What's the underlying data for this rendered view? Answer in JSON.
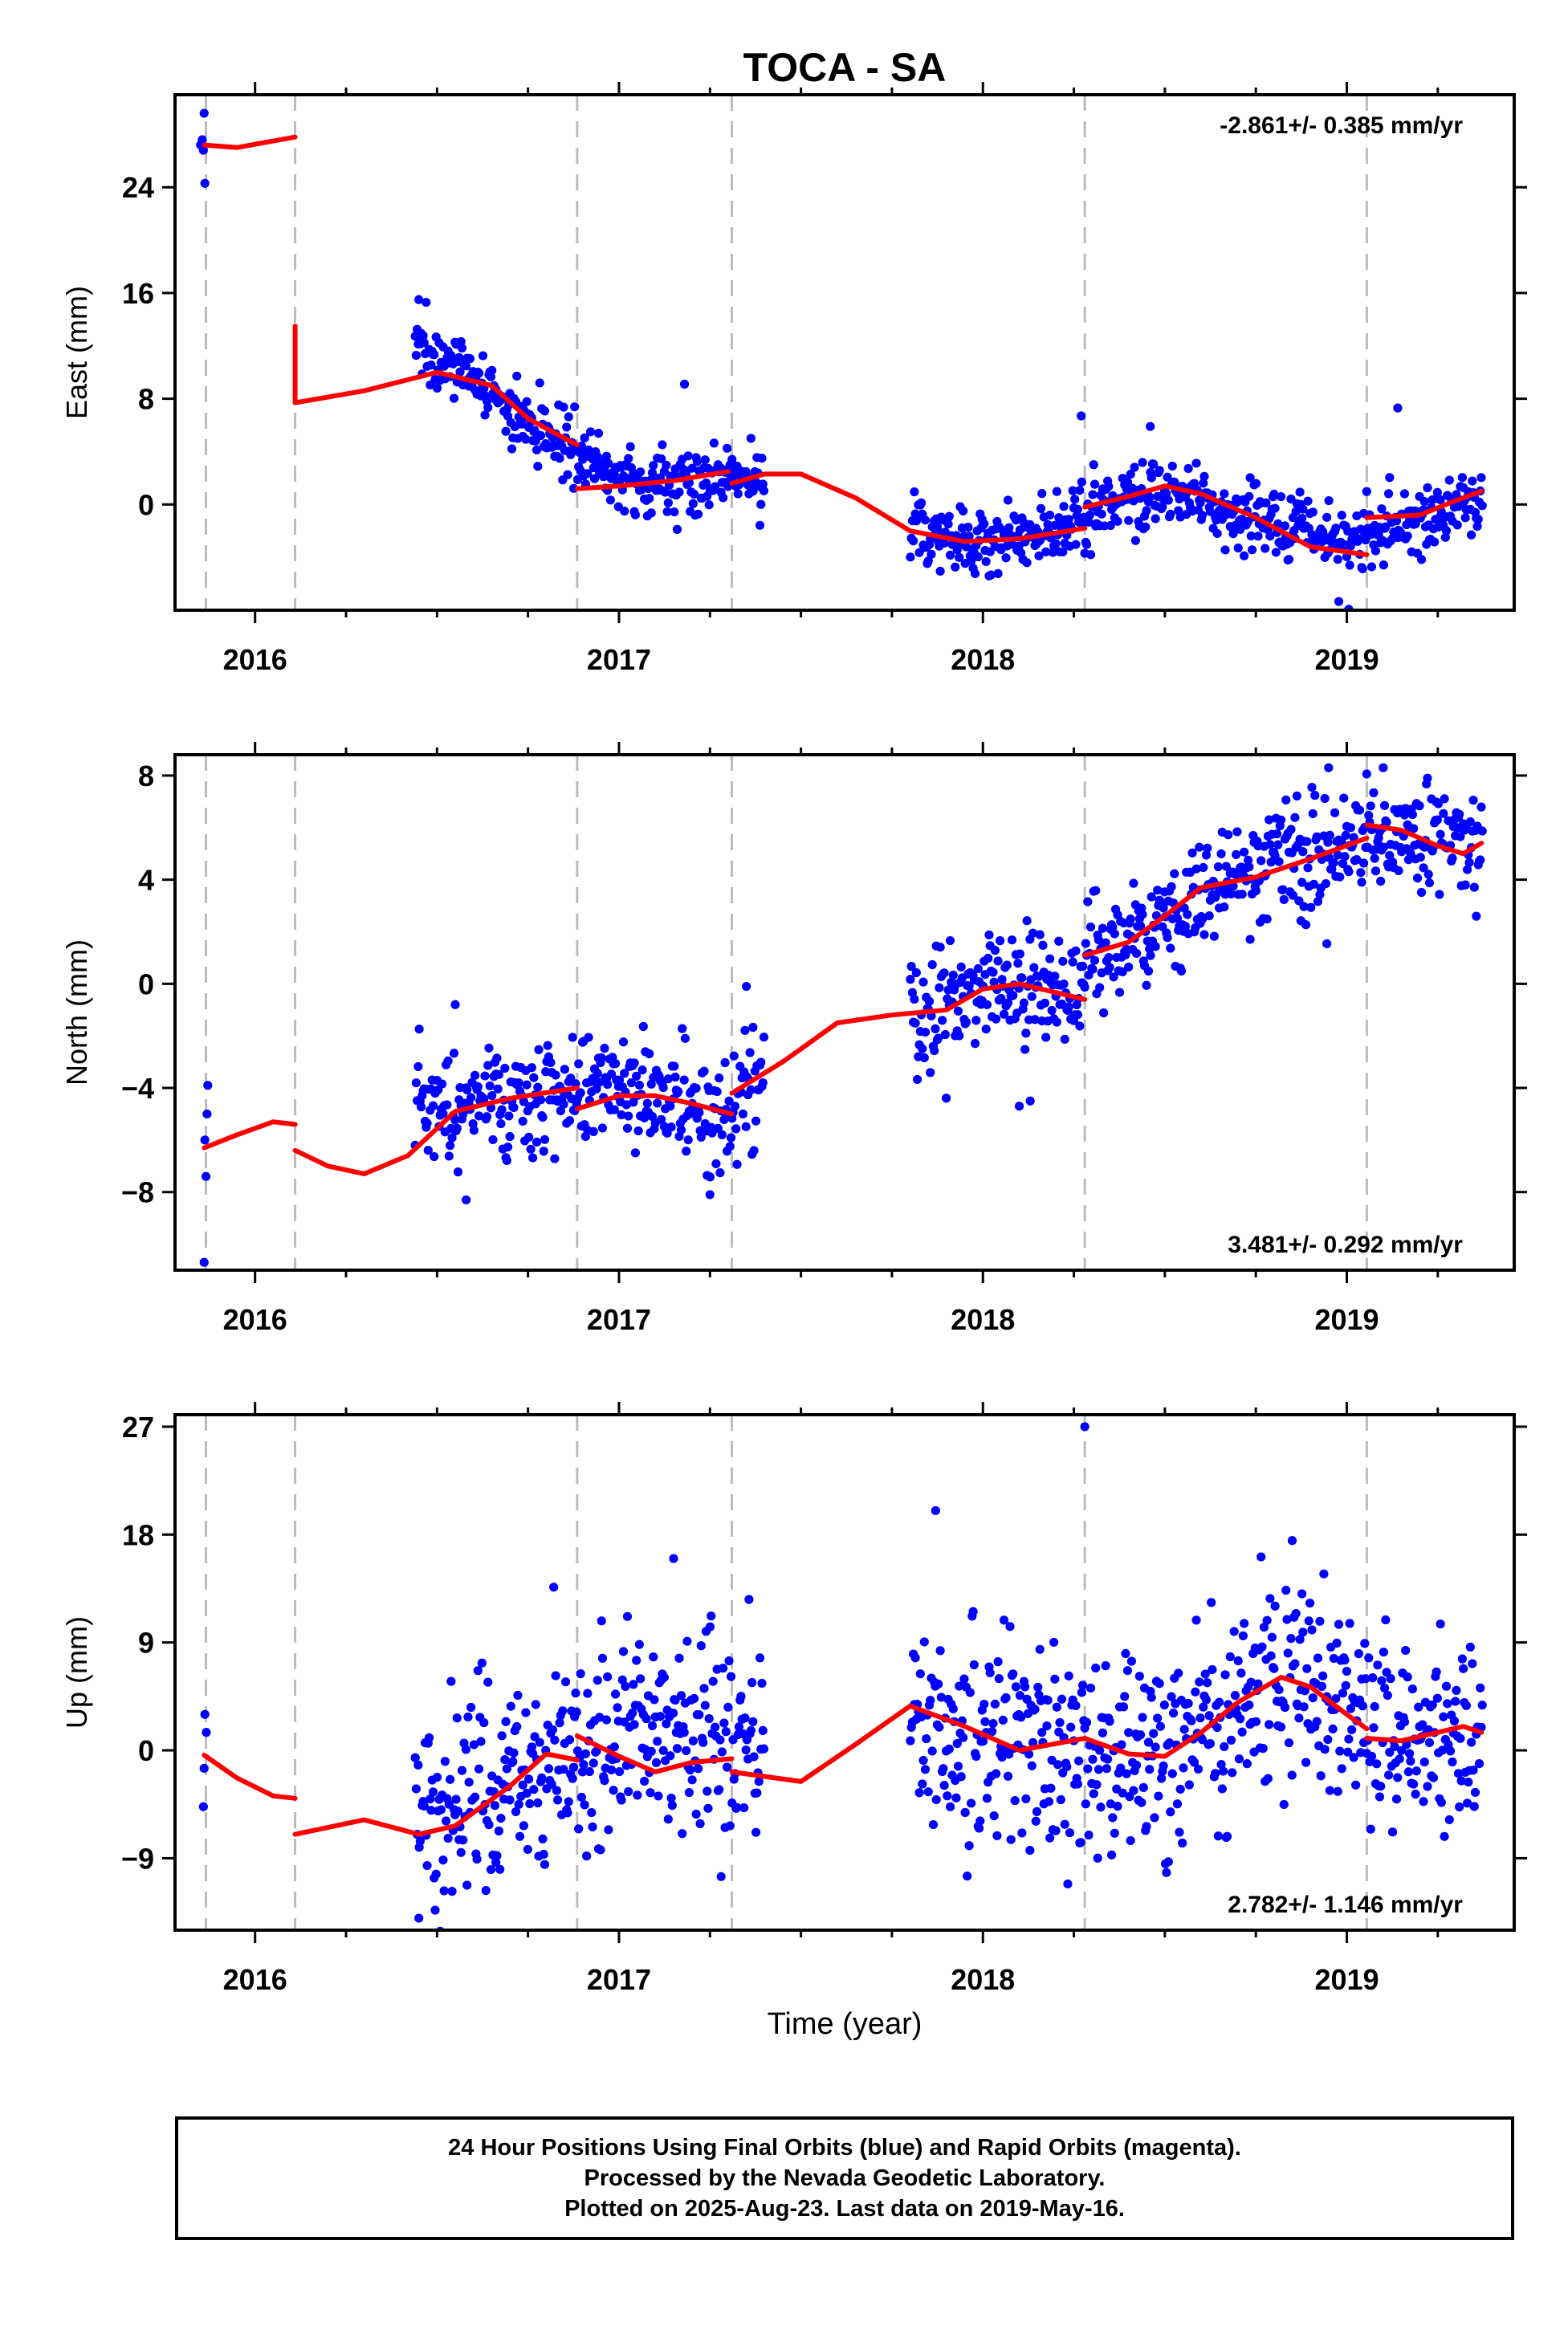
{
  "chart_data": {
    "type": "scatter",
    "title": "TOCA - SA",
    "xlabel": "Time (year)",
    "xlim": [
      2015.78,
      2019.46
    ],
    "x_ticks": [
      2016,
      2017,
      2018,
      2019
    ],
    "x_tick_labels": [
      "2016",
      "2017",
      "2018",
      "2019"
    ],
    "event_lines_x": [
      2015.865,
      2016.11,
      2016.885,
      2017.31,
      2018.28,
      2019.055
    ],
    "colors": {
      "final_orbits": "#0000ff",
      "model": "#ff0000",
      "event_line": "#bbbbbb"
    },
    "panels": [
      {
        "ylabel": "East (mm)",
        "ylim": [
          -8,
          31
        ],
        "y_ticks": [
          0,
          8,
          16,
          24
        ],
        "y_tick_labels": [
          "0",
          "8",
          "16",
          "24"
        ],
        "rate_label": "-2.861+/- 0.385 mm/yr",
        "rate_position": "top-right",
        "anchors": [
          [
            2016.45,
            12.0
          ],
          [
            2016.6,
            9.5
          ],
          [
            2016.75,
            6.0
          ],
          [
            2016.88,
            3.5
          ],
          [
            2017.05,
            1.5
          ],
          [
            2017.3,
            2.0
          ],
          [
            2017.4,
            2.0
          ],
          [
            2017.8,
            -2.0
          ],
          [
            2018.0,
            -3.0
          ],
          [
            2018.25,
            -1.5
          ],
          [
            2018.5,
            1.0
          ],
          [
            2018.8,
            -1.5
          ],
          [
            2019.0,
            -3.0
          ],
          [
            2019.2,
            -1.0
          ],
          [
            2019.37,
            0.5
          ]
        ],
        "noise": 1.3,
        "extra_points": [
          [
            2015.86,
            29.6
          ],
          [
            2015.855,
            27.6
          ],
          [
            2015.858,
            26.8
          ],
          [
            2015.862,
            24.3
          ],
          [
            2015.85,
            27.2
          ],
          [
            2016.45,
            15.5
          ],
          [
            2017.18,
            9.1
          ],
          [
            2018.27,
            6.7
          ],
          [
            2018.46,
            5.9
          ],
          [
            2019.14,
            7.3
          ]
        ],
        "model_segments": [
          [
            [
              2015.86,
              27.2
            ],
            [
              2015.95,
              27.0
            ],
            [
              2016.05,
              27.5
            ],
            [
              2016.11,
              27.8
            ]
          ],
          [
            [
              2016.11,
              13.5
            ],
            [
              2016.11,
              7.7
            ],
            [
              2016.3,
              8.6
            ],
            [
              2016.5,
              10.0
            ],
            [
              2016.65,
              9.0
            ],
            [
              2016.75,
              6.5
            ],
            [
              2016.885,
              4.5
            ]
          ],
          [
            [
              2016.885,
              1.2
            ],
            [
              2017.0,
              1.4
            ],
            [
              2017.15,
              1.8
            ],
            [
              2017.3,
              2.5
            ]
          ],
          [
            [
              2017.31,
              1.6
            ],
            [
              2017.4,
              2.3
            ],
            [
              2017.5,
              2.3
            ],
            [
              2017.65,
              0.5
            ],
            [
              2017.8,
              -2.0
            ],
            [
              2017.95,
              -2.8
            ],
            [
              2018.1,
              -2.6
            ],
            [
              2018.28,
              -1.8
            ]
          ],
          [
            [
              2018.28,
              -0.2
            ],
            [
              2018.4,
              0.6
            ],
            [
              2018.5,
              1.4
            ],
            [
              2018.6,
              0.8
            ],
            [
              2018.75,
              -1.0
            ],
            [
              2018.9,
              -3.2
            ],
            [
              2019.055,
              -3.8
            ]
          ],
          [
            [
              2019.055,
              -1.0
            ],
            [
              2019.2,
              -0.8
            ],
            [
              2019.3,
              0.3
            ],
            [
              2019.37,
              1.0
            ]
          ]
        ]
      },
      {
        "ylabel": "North (mm)",
        "ylim": [
          -11,
          8.8
        ],
        "y_ticks": [
          -8,
          -4,
          0,
          4,
          8
        ],
        "y_tick_labels": [
          "−8",
          "−4",
          "0",
          "4",
          "8"
        ],
        "rate_label": "3.481+/- 0.292 mm/yr",
        "rate_position": "bottom-right",
        "anchors": [
          [
            2016.45,
            -5.0
          ],
          [
            2016.6,
            -4.6
          ],
          [
            2016.8,
            -4.5
          ],
          [
            2016.9,
            -4.0
          ],
          [
            2017.1,
            -4.0
          ],
          [
            2017.25,
            -4.8
          ],
          [
            2017.4,
            -4.0
          ],
          [
            2017.8,
            -1.0
          ],
          [
            2018.0,
            0.0
          ],
          [
            2018.25,
            -0.5
          ],
          [
            2018.3,
            1.0
          ],
          [
            2018.5,
            2.5
          ],
          [
            2018.7,
            4.2
          ],
          [
            2018.9,
            5.0
          ],
          [
            2019.05,
            5.8
          ],
          [
            2019.2,
            5.6
          ],
          [
            2019.37,
            5.4
          ]
        ],
        "noise": 1.1,
        "extra_points": [
          [
            2015.86,
            -10.7
          ],
          [
            2015.865,
            -7.4
          ],
          [
            2015.862,
            -6.0
          ],
          [
            2015.868,
            -5.0
          ],
          [
            2015.87,
            -3.9
          ],
          [
            2016.55,
            -0.8
          ],
          [
            2016.58,
            -8.3
          ],
          [
            2017.25,
            -8.1
          ],
          [
            2017.35,
            -0.1
          ],
          [
            2018.1,
            -4.7
          ],
          [
            2018.13,
            -4.5
          ],
          [
            2018.95,
            8.3
          ],
          [
            2019.1,
            8.3
          ]
        ],
        "model_segments": [
          [
            [
              2015.86,
              -6.3
            ],
            [
              2015.95,
              -5.8
            ],
            [
              2016.05,
              -5.3
            ],
            [
              2016.11,
              -5.4
            ]
          ],
          [
            [
              2016.11,
              -6.4
            ],
            [
              2016.2,
              -7.0
            ],
            [
              2016.3,
              -7.3
            ],
            [
              2016.42,
              -6.6
            ],
            [
              2016.55,
              -4.9
            ],
            [
              2016.7,
              -4.4
            ],
            [
              2016.885,
              -4.0
            ]
          ],
          [
            [
              2016.885,
              -4.8
            ],
            [
              2017.0,
              -4.3
            ],
            [
              2017.1,
              -4.3
            ],
            [
              2017.2,
              -4.6
            ],
            [
              2017.31,
              -5.0
            ]
          ],
          [
            [
              2017.31,
              -4.2
            ],
            [
              2017.45,
              -3.0
            ],
            [
              2017.6,
              -1.5
            ],
            [
              2017.75,
              -1.2
            ],
            [
              2017.9,
              -1.0
            ],
            [
              2018.0,
              -0.2
            ],
            [
              2018.1,
              0.0
            ],
            [
              2018.28,
              -0.6
            ]
          ],
          [
            [
              2018.28,
              1.1
            ],
            [
              2018.4,
              1.6
            ],
            [
              2018.5,
              2.6
            ],
            [
              2018.6,
              3.7
            ],
            [
              2018.75,
              4.1
            ],
            [
              2018.9,
              4.8
            ],
            [
              2019.055,
              5.6
            ]
          ],
          [
            [
              2019.055,
              6.1
            ],
            [
              2019.15,
              5.9
            ],
            [
              2019.25,
              5.3
            ],
            [
              2019.32,
              5.0
            ],
            [
              2019.37,
              5.4
            ]
          ]
        ]
      },
      {
        "ylabel": "Up (mm)",
        "ylim": [
          -15,
          28
        ],
        "y_ticks": [
          -9,
          0,
          9,
          18,
          27
        ],
        "y_tick_labels": [
          "−9",
          "0",
          "9",
          "18",
          "27"
        ],
        "rate_label": "2.782+/- 1.146 mm/yr",
        "rate_position": "bottom-right",
        "anchors": [
          [
            2016.45,
            -7.0
          ],
          [
            2016.6,
            -4.0
          ],
          [
            2016.8,
            -1.0
          ],
          [
            2017.0,
            1.0
          ],
          [
            2017.2,
            0.0
          ],
          [
            2017.4,
            -1.0
          ],
          [
            2017.8,
            3.0
          ],
          [
            2018.0,
            1.0
          ],
          [
            2018.3,
            0.5
          ],
          [
            2018.5,
            0.0
          ],
          [
            2018.7,
            3.0
          ],
          [
            2018.85,
            7.0
          ],
          [
            2019.0,
            3.0
          ],
          [
            2019.2,
            1.0
          ],
          [
            2019.37,
            1.0
          ]
        ],
        "noise": 4.3,
        "extra_points": [
          [
            2015.862,
            3.0
          ],
          [
            2015.866,
            1.5
          ],
          [
            2015.86,
            -1.5
          ],
          [
            2015.858,
            -4.7
          ],
          [
            2016.45,
            -14.0
          ],
          [
            2017.15,
            16.0
          ],
          [
            2017.87,
            20.0
          ],
          [
            2018.28,
            27.0
          ],
          [
            2018.85,
            17.5
          ]
        ],
        "model_segments": [
          [
            [
              2015.86,
              -0.4
            ],
            [
              2015.95,
              -2.3
            ],
            [
              2016.05,
              -3.8
            ],
            [
              2016.11,
              -4.0
            ]
          ],
          [
            [
              2016.11,
              -7.0
            ],
            [
              2016.3,
              -5.8
            ],
            [
              2016.45,
              -7.0
            ],
            [
              2016.55,
              -6.3
            ],
            [
              2016.7,
              -3.0
            ],
            [
              2016.8,
              -0.3
            ],
            [
              2016.885,
              -0.8
            ]
          ],
          [
            [
              2016.885,
              1.2
            ],
            [
              2017.0,
              -0.5
            ],
            [
              2017.1,
              -1.8
            ],
            [
              2017.2,
              -1.0
            ],
            [
              2017.31,
              -0.7
            ]
          ],
          [
            [
              2017.31,
              -1.8
            ],
            [
              2017.5,
              -2.6
            ],
            [
              2017.65,
              0.5
            ],
            [
              2017.8,
              3.7
            ],
            [
              2017.95,
              2.0
            ],
            [
              2018.1,
              0.0
            ],
            [
              2018.28,
              1.0
            ]
          ],
          [
            [
              2018.28,
              1.0
            ],
            [
              2018.4,
              -0.3
            ],
            [
              2018.5,
              -0.5
            ],
            [
              2018.6,
              1.5
            ],
            [
              2018.7,
              4.0
            ],
            [
              2018.82,
              6.1
            ],
            [
              2018.9,
              5.3
            ],
            [
              2019.0,
              3.0
            ],
            [
              2019.055,
              1.8
            ]
          ],
          [
            [
              2019.055,
              1.0
            ],
            [
              2019.15,
              0.8
            ],
            [
              2019.25,
              1.5
            ],
            [
              2019.32,
              2.0
            ],
            [
              2019.37,
              1.5
            ]
          ]
        ]
      }
    ],
    "data_gaps": [
      [
        2016.0,
        2016.44
      ],
      [
        2017.4,
        2017.8
      ]
    ]
  },
  "footer": {
    "line1": "24 Hour Positions Using Final Orbits (blue) and Rapid Orbits (magenta).",
    "line2": "Processed by the Nevada Geodetic Laboratory.",
    "line3": "Plotted on 2025-Aug-23. Last data on 2019-May-16."
  }
}
